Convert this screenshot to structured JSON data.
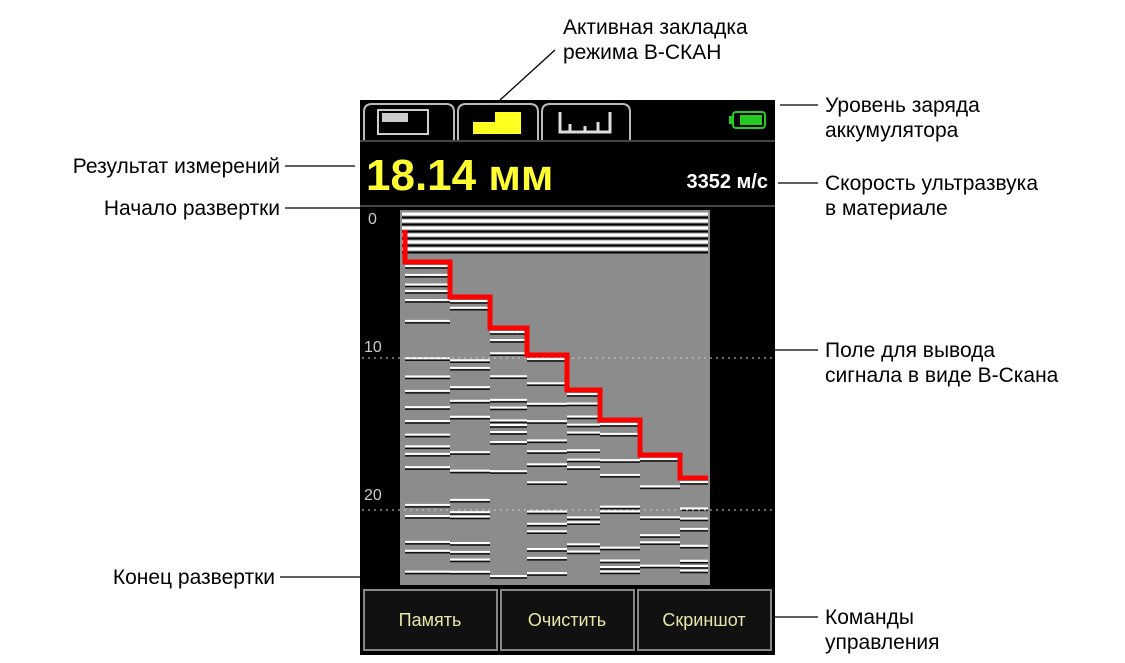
{
  "callouts": {
    "active_tab": [
      "Активная закладка",
      "режима В-СКАН"
    ],
    "battery": [
      "Уровень заряда",
      "аккумулятора"
    ],
    "result": [
      "Результат измерений"
    ],
    "velocity": [
      "Скорость ультразвука",
      "в материале"
    ],
    "sweep_start": [
      "Начало развертки"
    ],
    "field": [
      "Поле для вывода",
      "сигнала в виде В-Скана"
    ],
    "sweep_end": [
      "Конец развертки"
    ],
    "commands": [
      "Команды",
      "управления"
    ]
  },
  "screen": {
    "thickness": "18.14 мм",
    "velocity": "3352 м/с",
    "scale_labels": [
      "0",
      "10",
      "20"
    ],
    "buttons": [
      "Память",
      "Очистить",
      "Скриншот"
    ]
  }
}
